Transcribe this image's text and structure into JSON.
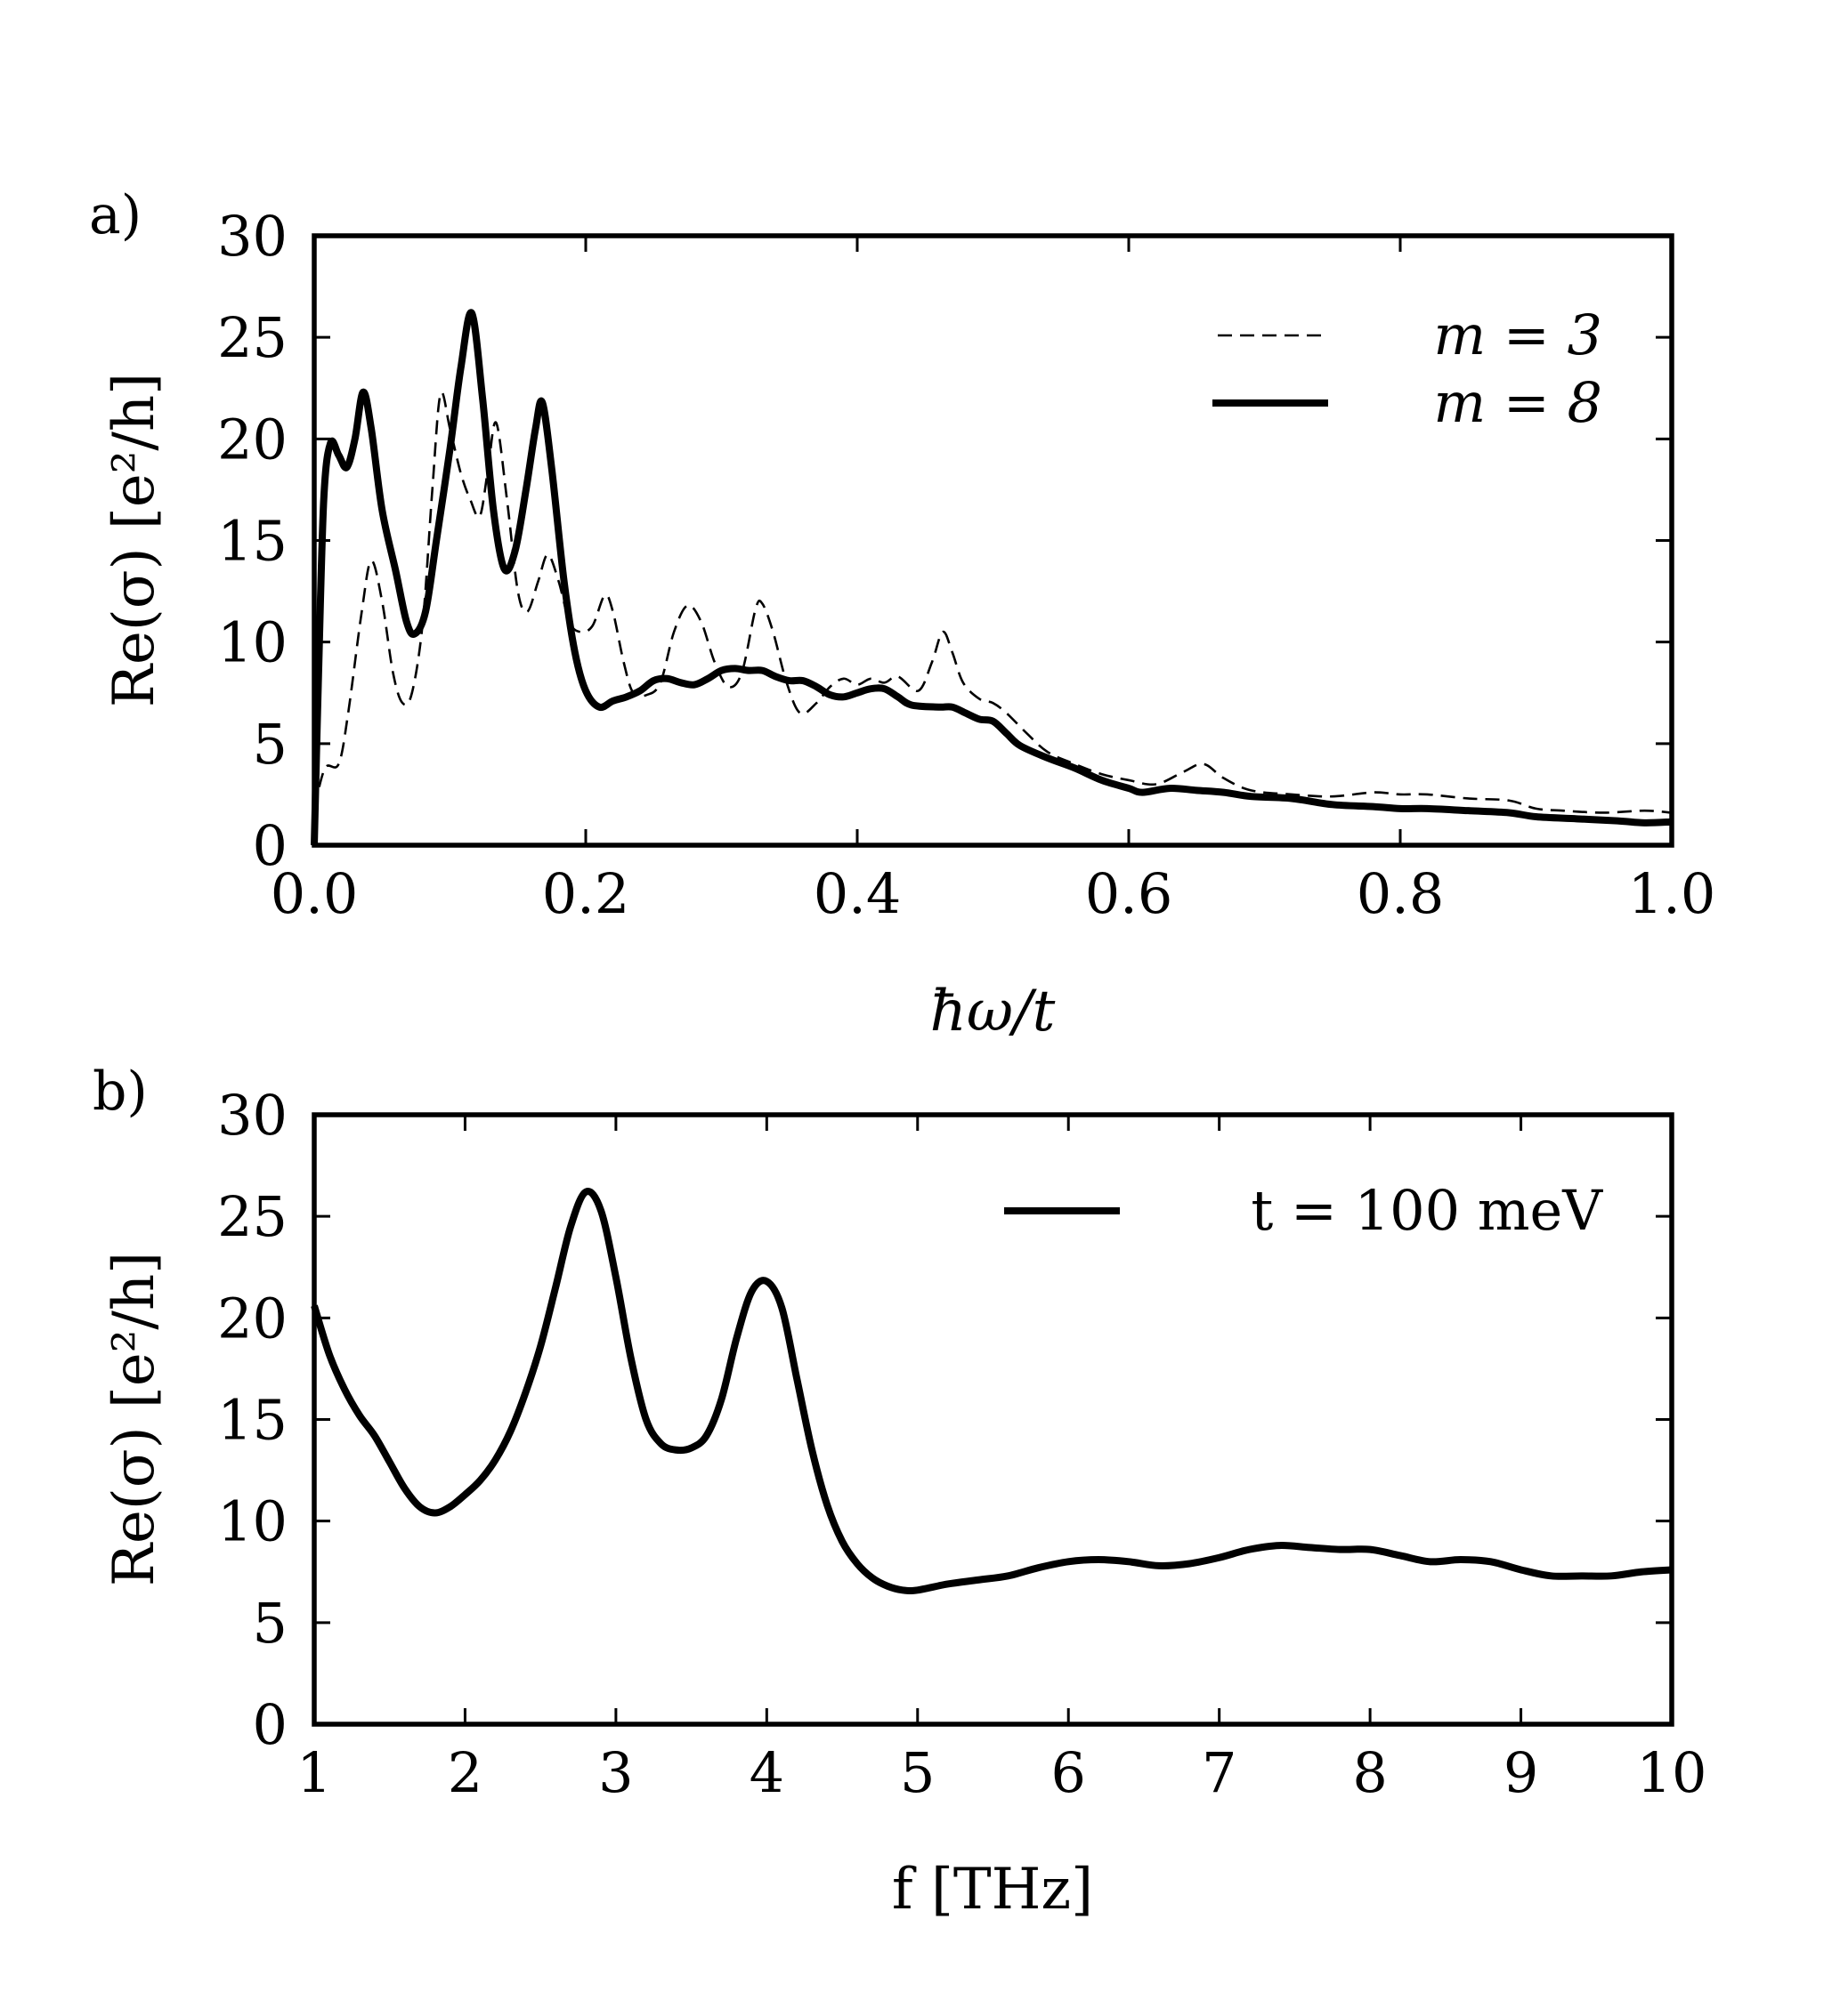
{
  "chart_data": [
    {
      "type": "line",
      "panel_label": "a)",
      "xlabel": "ħω/t",
      "ylabel": "Re(σ) [e²/h]",
      "xlim": [
        0.0,
        1.0
      ],
      "ylim": [
        0,
        30
      ],
      "x_ticks": [
        0.0,
        0.2,
        0.4,
        0.6,
        0.8,
        1.0
      ],
      "x_tick_labels": [
        "0.0",
        "0.2",
        "0.4",
        "0.6",
        "0.8",
        "1.0"
      ],
      "y_ticks": [
        0,
        5,
        10,
        15,
        20,
        25,
        30
      ],
      "y_tick_labels": [
        "0",
        "5",
        "10",
        "15",
        "20",
        "25",
        "30"
      ],
      "legend_position": "top-right",
      "series": [
        {
          "name": "m = 3",
          "style": "dashed",
          "color": "#000000",
          "points": [
            [
              0.0,
              1.8
            ],
            [
              0.008,
              3.8
            ],
            [
              0.018,
              4.0
            ],
            [
              0.025,
              6.5
            ],
            [
              0.035,
              11.5
            ],
            [
              0.042,
              14.0
            ],
            [
              0.05,
              12.0
            ],
            [
              0.058,
              8.5
            ],
            [
              0.065,
              7.0
            ],
            [
              0.072,
              7.5
            ],
            [
              0.08,
              11.0
            ],
            [
              0.087,
              17.5
            ],
            [
              0.093,
              22.2
            ],
            [
              0.1,
              20.5
            ],
            [
              0.108,
              18.3
            ],
            [
              0.115,
              17.0
            ],
            [
              0.122,
              16.2
            ],
            [
              0.128,
              18.5
            ],
            [
              0.134,
              20.8
            ],
            [
              0.142,
              17.0
            ],
            [
              0.15,
              12.5
            ],
            [
              0.157,
              11.5
            ],
            [
              0.165,
              13.0
            ],
            [
              0.172,
              14.3
            ],
            [
              0.18,
              13.0
            ],
            [
              0.188,
              11.0
            ],
            [
              0.196,
              10.5
            ],
            [
              0.205,
              10.8
            ],
            [
              0.214,
              12.3
            ],
            [
              0.22,
              11.5
            ],
            [
              0.228,
              9.0
            ],
            [
              0.235,
              7.5
            ],
            [
              0.245,
              7.4
            ],
            [
              0.255,
              8.0
            ],
            [
              0.265,
              10.5
            ],
            [
              0.275,
              11.8
            ],
            [
              0.285,
              11.0
            ],
            [
              0.295,
              9.0
            ],
            [
              0.305,
              7.8
            ],
            [
              0.315,
              8.5
            ],
            [
              0.325,
              11.6
            ],
            [
              0.33,
              11.9
            ],
            [
              0.338,
              10.5
            ],
            [
              0.348,
              8.0
            ],
            [
              0.358,
              6.5
            ],
            [
              0.37,
              7.0
            ],
            [
              0.38,
              7.8
            ],
            [
              0.39,
              8.2
            ],
            [
              0.4,
              7.9
            ],
            [
              0.41,
              8.2
            ],
            [
              0.42,
              8.0
            ],
            [
              0.43,
              8.3
            ],
            [
              0.445,
              7.6
            ],
            [
              0.455,
              9.0
            ],
            [
              0.463,
              10.5
            ],
            [
              0.47,
              9.5
            ],
            [
              0.478,
              8.0
            ],
            [
              0.49,
              7.2
            ],
            [
              0.5,
              7.0
            ],
            [
              0.51,
              6.5
            ],
            [
              0.525,
              5.5
            ],
            [
              0.54,
              4.6
            ],
            [
              0.56,
              4.0
            ],
            [
              0.58,
              3.5
            ],
            [
              0.6,
              3.2
            ],
            [
              0.62,
              3.0
            ],
            [
              0.64,
              3.6
            ],
            [
              0.655,
              4.0
            ],
            [
              0.67,
              3.3
            ],
            [
              0.69,
              2.7
            ],
            [
              0.72,
              2.5
            ],
            [
              0.75,
              2.4
            ],
            [
              0.78,
              2.6
            ],
            [
              0.8,
              2.5
            ],
            [
              0.82,
              2.5
            ],
            [
              0.85,
              2.3
            ],
            [
              0.88,
              2.2
            ],
            [
              0.9,
              1.8
            ],
            [
              0.92,
              1.7
            ],
            [
              0.95,
              1.6
            ],
            [
              0.98,
              1.7
            ],
            [
              1.0,
              1.6
            ]
          ]
        },
        {
          "name": "m = 8",
          "style": "solid",
          "color": "#000000",
          "points": [
            [
              0.0,
              0.0
            ],
            [
              0.003,
              8.0
            ],
            [
              0.007,
              17.0
            ],
            [
              0.012,
              19.8
            ],
            [
              0.018,
              19.2
            ],
            [
              0.024,
              18.6
            ],
            [
              0.03,
              20.0
            ],
            [
              0.036,
              22.3
            ],
            [
              0.042,
              20.5
            ],
            [
              0.05,
              16.5
            ],
            [
              0.06,
              13.5
            ],
            [
              0.068,
              11.0
            ],
            [
              0.074,
              10.4
            ],
            [
              0.082,
              11.5
            ],
            [
              0.09,
              15.0
            ],
            [
              0.1,
              19.5
            ],
            [
              0.108,
              23.5
            ],
            [
              0.116,
              26.2
            ],
            [
              0.124,
              22.0
            ],
            [
              0.132,
              16.5
            ],
            [
              0.14,
              13.6
            ],
            [
              0.148,
              14.5
            ],
            [
              0.156,
              17.5
            ],
            [
              0.163,
              20.5
            ],
            [
              0.168,
              21.8
            ],
            [
              0.175,
              18.5
            ],
            [
              0.184,
              13.0
            ],
            [
              0.192,
              9.5
            ],
            [
              0.2,
              7.6
            ],
            [
              0.21,
              6.8
            ],
            [
              0.22,
              7.1
            ],
            [
              0.23,
              7.3
            ],
            [
              0.24,
              7.6
            ],
            [
              0.25,
              8.1
            ],
            [
              0.26,
              8.2
            ],
            [
              0.27,
              8.0
            ],
            [
              0.28,
              7.9
            ],
            [
              0.29,
              8.2
            ],
            [
              0.3,
              8.6
            ],
            [
              0.31,
              8.7
            ],
            [
              0.32,
              8.6
            ],
            [
              0.33,
              8.6
            ],
            [
              0.34,
              8.3
            ],
            [
              0.35,
              8.1
            ],
            [
              0.36,
              8.1
            ],
            [
              0.37,
              7.8
            ],
            [
              0.38,
              7.4
            ],
            [
              0.39,
              7.3
            ],
            [
              0.4,
              7.5
            ],
            [
              0.41,
              7.7
            ],
            [
              0.42,
              7.7
            ],
            [
              0.43,
              7.3
            ],
            [
              0.44,
              6.9
            ],
            [
              0.46,
              6.8
            ],
            [
              0.47,
              6.8
            ],
            [
              0.48,
              6.5
            ],
            [
              0.49,
              6.2
            ],
            [
              0.5,
              6.1
            ],
            [
              0.51,
              5.5
            ],
            [
              0.52,
              4.9
            ],
            [
              0.54,
              4.3
            ],
            [
              0.56,
              3.8
            ],
            [
              0.58,
              3.2
            ],
            [
              0.6,
              2.8
            ],
            [
              0.61,
              2.6
            ],
            [
              0.63,
              2.8
            ],
            [
              0.65,
              2.7
            ],
            [
              0.67,
              2.6
            ],
            [
              0.69,
              2.4
            ],
            [
              0.72,
              2.3
            ],
            [
              0.75,
              2.0
            ],
            [
              0.78,
              1.9
            ],
            [
              0.8,
              1.8
            ],
            [
              0.82,
              1.8
            ],
            [
              0.85,
              1.7
            ],
            [
              0.88,
              1.6
            ],
            [
              0.9,
              1.4
            ],
            [
              0.93,
              1.3
            ],
            [
              0.96,
              1.2
            ],
            [
              0.98,
              1.1
            ],
            [
              1.0,
              1.15
            ]
          ]
        }
      ]
    },
    {
      "type": "line",
      "panel_label": "b)",
      "xlabel": "f [THz]",
      "ylabel": "Re(σ) [e²/h]",
      "xlim": [
        1,
        10
      ],
      "ylim": [
        0,
        30
      ],
      "x_ticks": [
        1,
        2,
        3,
        4,
        5,
        6,
        7,
        8,
        9,
        10
      ],
      "x_tick_labels": [
        "1",
        "2",
        "3",
        "4",
        "5",
        "6",
        "7",
        "8",
        "9",
        "10"
      ],
      "y_ticks": [
        0,
        5,
        10,
        15,
        20,
        25,
        30
      ],
      "y_tick_labels": [
        "0",
        "5",
        "10",
        "15",
        "20",
        "25",
        "30"
      ],
      "legend_position": "top-right",
      "series": [
        {
          "name": "t = 100 meV",
          "style": "solid",
          "color": "#000000",
          "points": [
            [
              1.0,
              20.6
            ],
            [
              1.1,
              18.2
            ],
            [
              1.2,
              16.5
            ],
            [
              1.3,
              15.2
            ],
            [
              1.4,
              14.2
            ],
            [
              1.5,
              12.9
            ],
            [
              1.6,
              11.6
            ],
            [
              1.7,
              10.7
            ],
            [
              1.8,
              10.4
            ],
            [
              1.9,
              10.7
            ],
            [
              2.0,
              11.3
            ],
            [
              2.1,
              12.0
            ],
            [
              2.2,
              13.0
            ],
            [
              2.3,
              14.4
            ],
            [
              2.4,
              16.3
            ],
            [
              2.5,
              18.6
            ],
            [
              2.6,
              21.5
            ],
            [
              2.7,
              24.5
            ],
            [
              2.8,
              26.2
            ],
            [
              2.9,
              25.3
            ],
            [
              3.0,
              22.0
            ],
            [
              3.1,
              18.0
            ],
            [
              3.2,
              15.0
            ],
            [
              3.3,
              13.8
            ],
            [
              3.4,
              13.5
            ],
            [
              3.5,
              13.6
            ],
            [
              3.6,
              14.2
            ],
            [
              3.7,
              16.0
            ],
            [
              3.8,
              19.0
            ],
            [
              3.9,
              21.3
            ],
            [
              4.0,
              21.8
            ],
            [
              4.1,
              20.5
            ],
            [
              4.2,
              17.0
            ],
            [
              4.3,
              13.5
            ],
            [
              4.4,
              10.8
            ],
            [
              4.5,
              9.0
            ],
            [
              4.6,
              7.9
            ],
            [
              4.7,
              7.2
            ],
            [
              4.8,
              6.8
            ],
            [
              4.9,
              6.6
            ],
            [
              5.0,
              6.6
            ],
            [
              5.2,
              6.9
            ],
            [
              5.4,
              7.1
            ],
            [
              5.6,
              7.3
            ],
            [
              5.8,
              7.7
            ],
            [
              6.0,
              8.0
            ],
            [
              6.2,
              8.1
            ],
            [
              6.4,
              8.0
            ],
            [
              6.6,
              7.8
            ],
            [
              6.8,
              7.9
            ],
            [
              7.0,
              8.2
            ],
            [
              7.2,
              8.6
            ],
            [
              7.4,
              8.8
            ],
            [
              7.6,
              8.7
            ],
            [
              7.8,
              8.6
            ],
            [
              8.0,
              8.6
            ],
            [
              8.2,
              8.3
            ],
            [
              8.4,
              8.0
            ],
            [
              8.6,
              8.1
            ],
            [
              8.8,
              8.0
            ],
            [
              9.0,
              7.6
            ],
            [
              9.2,
              7.3
            ],
            [
              9.4,
              7.3
            ],
            [
              9.6,
              7.3
            ],
            [
              9.8,
              7.5
            ],
            [
              10.0,
              7.6
            ]
          ]
        }
      ]
    }
  ]
}
